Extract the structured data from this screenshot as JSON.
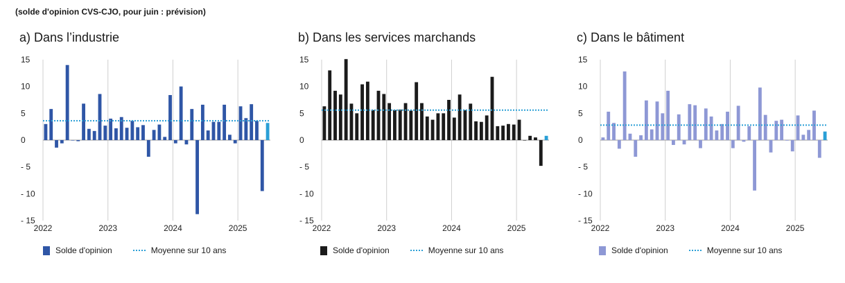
{
  "subtitle": "(solde d'opinion CVS-CJO, pour juin : prévision)",
  "chart_data": [
    {
      "type": "bar",
      "title": "a) Dans l’industrie",
      "color": "#2f56a6",
      "avg_color": "#2a9fd6",
      "ylim": [
        -15,
        15
      ],
      "yticks": [
        15,
        10,
        5,
        0,
        -5,
        -10,
        -15
      ],
      "ytick_labels": [
        "15",
        "10",
        "5",
        "0",
        "- 5",
        "- 10",
        "- 15"
      ],
      "xtick_labels": [
        "2022",
        "2023",
        "2024",
        "2025"
      ],
      "series": [
        {
          "name": "Solde d'opinion",
          "values": [
            3.0,
            5.8,
            -1.4,
            -0.6,
            14.0,
            0.0,
            -0.2,
            6.8,
            2.1,
            1.7,
            8.6,
            2.7,
            4.0,
            2.2,
            4.3,
            2.3,
            3.6,
            2.4,
            2.8,
            -3.1,
            1.9,
            2.9,
            0.6,
            8.4,
            -0.6,
            10.0,
            -0.8,
            5.8,
            -13.8,
            6.6,
            1.8,
            3.4,
            3.4,
            6.6,
            1.0,
            -0.6,
            6.3,
            4.1,
            6.7,
            3.6,
            -9.5
          ],
          "forecast": 3.2
        },
        {
          "name": "Moyenne sur 10 ans",
          "value": 3.6
        }
      ]
    },
    {
      "type": "bar",
      "title": "b) Dans les services marchands",
      "color": "#1b1b1b",
      "avg_color": "#2a9fd6",
      "ylim": [
        -15,
        15
      ],
      "yticks": [
        15,
        10,
        5,
        0,
        -5,
        -10,
        -15
      ],
      "ytick_labels": [
        "15",
        "10",
        "5",
        "0",
        "- 5",
        "- 10",
        "- 15"
      ],
      "xtick_labels": [
        "2022",
        "2023",
        "2024",
        "2025"
      ],
      "series": [
        {
          "name": "Solde d'opinion",
          "values": [
            6.3,
            13.0,
            9.2,
            8.5,
            15.1,
            6.8,
            5.0,
            10.4,
            10.9,
            5.6,
            9.2,
            8.6,
            6.9,
            5.6,
            5.7,
            6.9,
            5.5,
            10.8,
            6.9,
            4.4,
            3.8,
            5.0,
            5.0,
            7.5,
            4.2,
            8.5,
            5.6,
            6.8,
            3.5,
            3.4,
            4.6,
            11.8,
            2.6,
            2.7,
            3.0,
            2.9,
            3.8,
            0.0,
            0.8,
            0.5,
            -4.8
          ],
          "forecast": 0.8
        },
        {
          "name": "Moyenne sur 10 ans",
          "value": 5.6
        }
      ]
    },
    {
      "type": "bar",
      "title": "c) Dans le bâtiment",
      "color": "#8e98d5",
      "avg_color": "#2a9fd6",
      "ylim": [
        -15,
        15
      ],
      "yticks": [
        15,
        10,
        5,
        0,
        -5,
        -10,
        -15
      ],
      "ytick_labels": [
        "15",
        "10",
        "5",
        "0",
        "- 5",
        "- 10",
        "- 15"
      ],
      "xtick_labels": [
        "2022",
        "2023",
        "2024",
        "2025"
      ],
      "series": [
        {
          "name": "Solde d'opinion",
          "values": [
            0.5,
            5.3,
            3.2,
            -1.6,
            12.8,
            1.2,
            -3.1,
            0.9,
            7.4,
            2.0,
            7.2,
            5.0,
            9.2,
            -0.9,
            4.8,
            -0.8,
            6.7,
            6.5,
            -1.5,
            5.9,
            4.4,
            1.8,
            3.0,
            5.3,
            -1.5,
            6.4,
            -0.3,
            2.6,
            -9.4,
            9.8,
            4.7,
            -2.3,
            3.6,
            3.8,
            -0.1,
            -2.1,
            4.6,
            1.0,
            1.9,
            5.5,
            -3.3
          ],
          "forecast": 1.6
        },
        {
          "name": "Moyenne sur 10 ans",
          "value": 2.8
        }
      ]
    }
  ]
}
